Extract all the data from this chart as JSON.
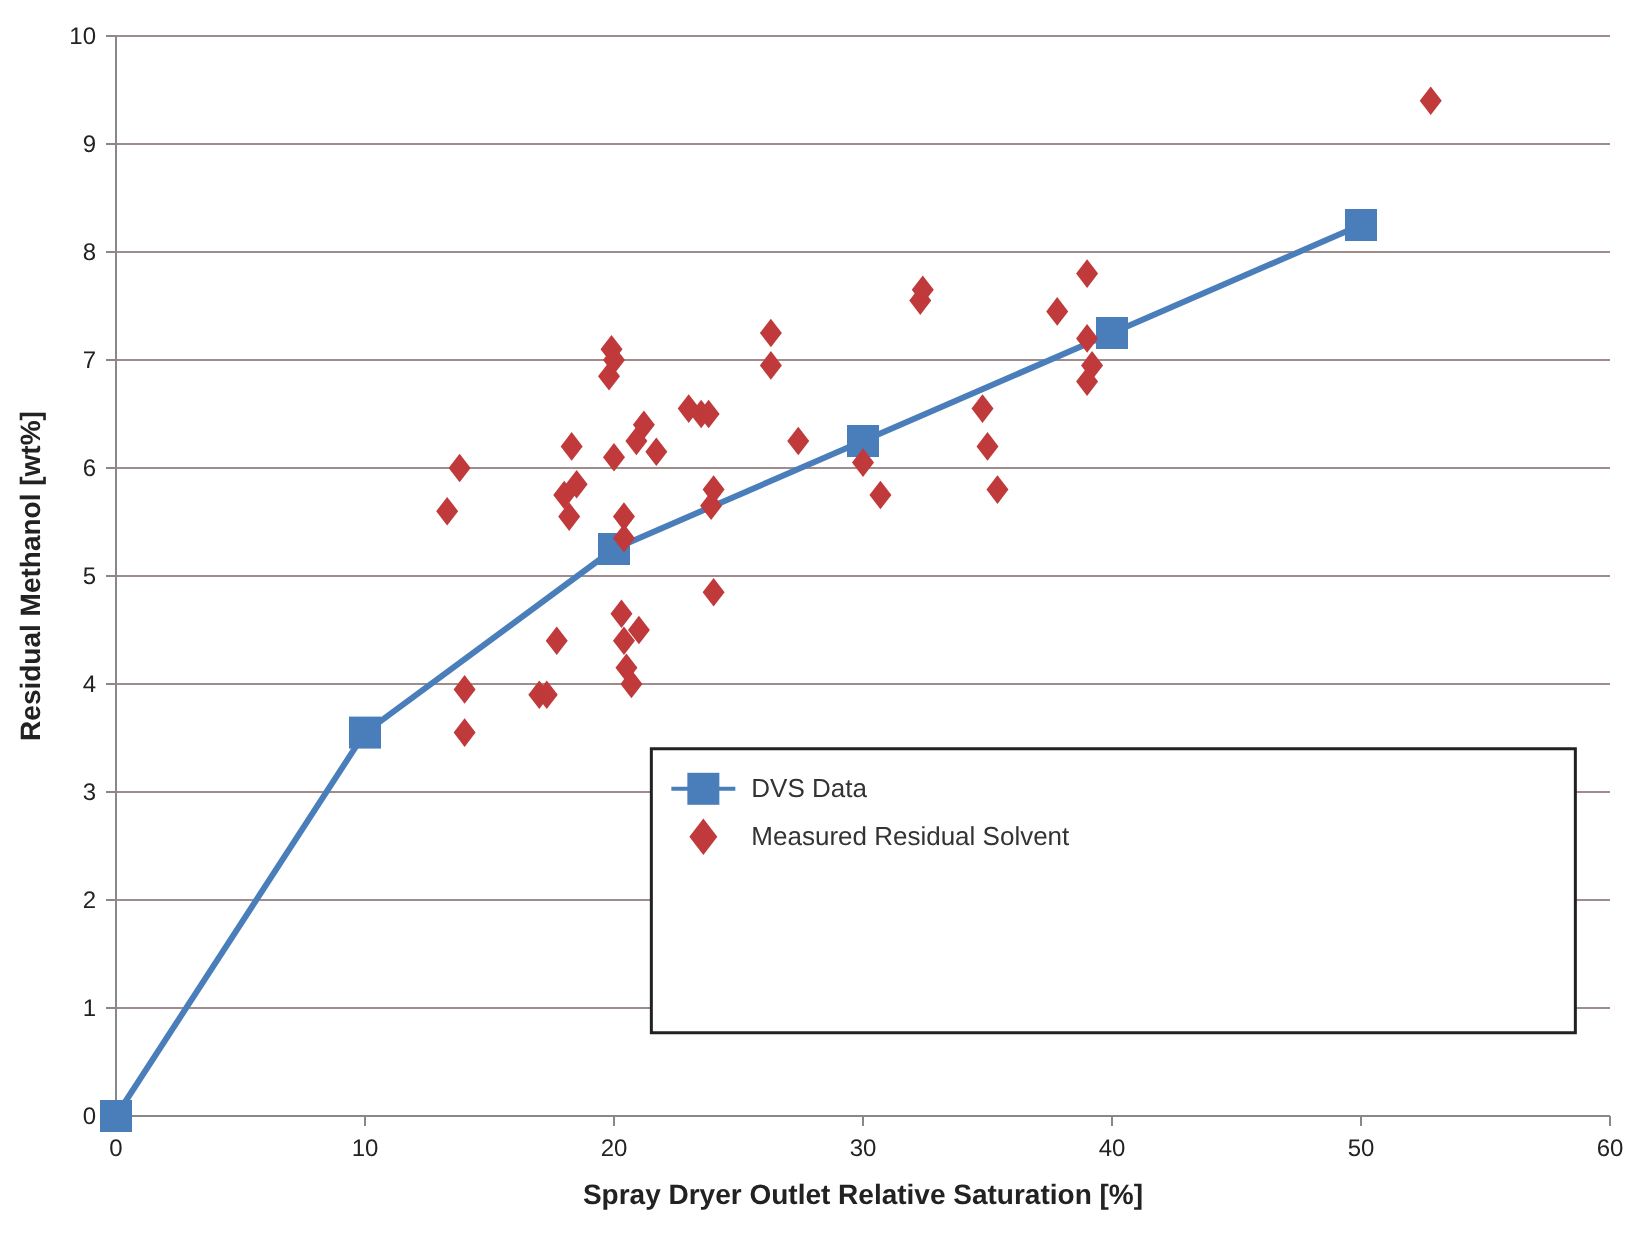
{
  "chart_data": {
    "type": "scatter",
    "xlabel": "Spray Dryer Outlet Relative Saturation [%]",
    "ylabel": "Residual Methanol [wt%]",
    "xlim": [
      0,
      60
    ],
    "xticks": [
      0,
      10,
      20,
      30,
      40,
      50,
      60
    ],
    "ylim": [
      0,
      10
    ],
    "yticks": [
      0,
      1,
      2,
      3,
      4,
      5,
      6,
      7,
      8,
      9,
      10
    ],
    "grid": "y",
    "legend": "bottom right",
    "series": [
      {
        "name": "DVS Data",
        "type": "line",
        "marker": "square",
        "color": "#4a7ebb",
        "x": [
          0,
          10,
          20,
          30,
          40,
          50
        ],
        "values": [
          0,
          3.55,
          5.25,
          6.25,
          7.25,
          8.25
        ]
      },
      {
        "name": "Measured Residual Solvent",
        "type": "scatter",
        "marker": "diamond",
        "color": "#c0393b",
        "x": [
          13.3,
          13.8,
          14.0,
          14.0,
          17.0,
          17.3,
          17.7,
          18.0,
          18.2,
          18.3,
          18.5,
          19.8,
          19.9,
          20.0,
          20.0,
          20.4,
          20.4,
          20.3,
          20.4,
          20.5,
          20.7,
          21.0,
          20.9,
          21.2,
          21.7,
          23.0,
          23.5,
          23.8,
          23.9,
          24.0,
          24.0,
          26.3,
          26.3,
          27.4,
          30.0,
          30.7,
          32.3,
          32.4,
          34.8,
          35.0,
          35.4,
          37.8,
          39.0,
          39.0,
          39.2,
          39.0,
          52.8
        ],
        "values": [
          5.6,
          6.0,
          3.95,
          3.55,
          3.9,
          3.9,
          4.4,
          5.75,
          5.55,
          6.2,
          5.85,
          6.85,
          7.1,
          7.0,
          6.1,
          5.55,
          5.35,
          4.65,
          4.4,
          4.15,
          4.0,
          4.5,
          6.25,
          6.4,
          6.15,
          6.55,
          6.5,
          6.5,
          5.65,
          5.8,
          4.85,
          7.25,
          6.95,
          6.25,
          6.05,
          5.75,
          7.55,
          7.65,
          6.55,
          6.2,
          5.8,
          7.45,
          7.8,
          7.2,
          6.95,
          6.8,
          9.4
        ]
      }
    ]
  }
}
